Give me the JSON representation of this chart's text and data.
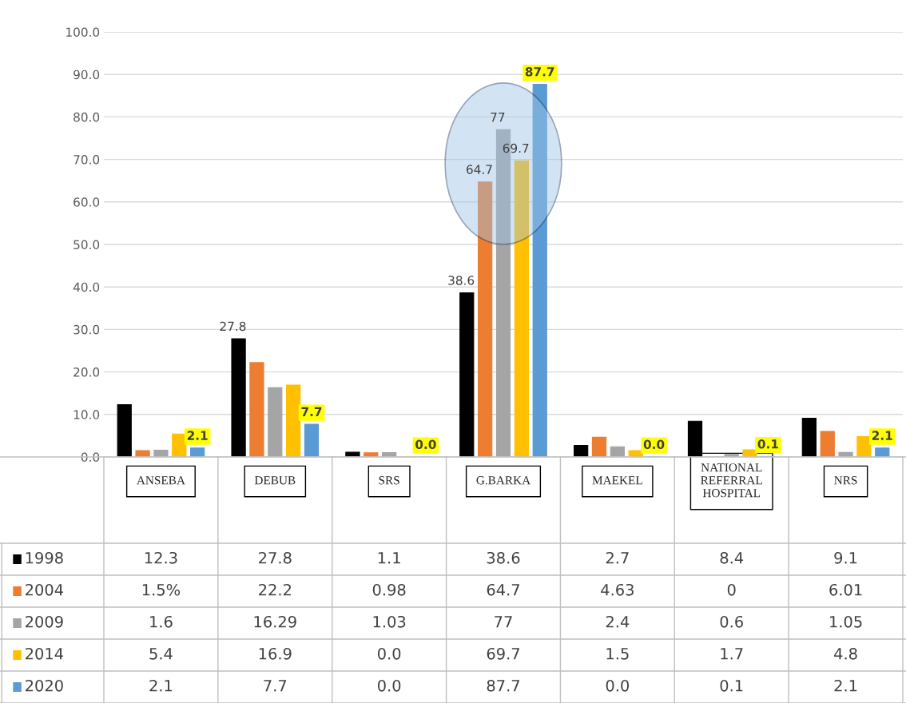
{
  "chart_data": {
    "type": "bar",
    "categories": [
      "ANSEBA",
      "DEBUB",
      "SRS",
      "G.BARKA",
      "MAEKEL",
      "NATIONAL\nREFERRAL\nHOSPITAL",
      "NRS"
    ],
    "series": [
      {
        "name": "1998",
        "color": "#000000",
        "values": [
          12.3,
          27.8,
          1.1,
          38.6,
          2.7,
          8.4,
          9.1
        ],
        "value_labels": [
          "12.3",
          "27.8",
          "1.1",
          "38.6",
          "2.7",
          "8.4",
          "9.1"
        ]
      },
      {
        "name": "2004",
        "color": "#ed7d31",
        "values": [
          1.5,
          22.2,
          0.98,
          64.7,
          4.63,
          0,
          6.01
        ],
        "value_labels": [
          "1.5%",
          "22.2",
          "0.98",
          "64.7",
          "4.63",
          "0",
          "6.01"
        ]
      },
      {
        "name": "2009",
        "color": "#a5a5a5",
        "values": [
          1.6,
          16.29,
          1.03,
          77,
          2.4,
          0.6,
          1.05
        ],
        "value_labels": [
          "1.6",
          "16.29",
          "1.03",
          "77",
          "2.4",
          "0.6",
          "1.05"
        ]
      },
      {
        "name": "2014",
        "color": "#ffc000",
        "values": [
          5.4,
          16.9,
          0.0,
          69.7,
          1.5,
          1.7,
          4.8
        ],
        "value_labels": [
          "5.4",
          "16.9",
          "0.0",
          "69.7",
          "1.5",
          "1.7",
          "4.8"
        ]
      },
      {
        "name": "2020",
        "color": "#5b9bd5",
        "values": [
          2.1,
          7.7,
          0.0,
          87.7,
          0.0,
          0.1,
          2.1
        ],
        "value_labels": [
          "2.1",
          "7.7",
          "0.0",
          "87.7",
          "0.0",
          "0.1",
          "2.1"
        ]
      }
    ],
    "annotations": [
      "27.8",
      "38.6",
      "64.7",
      "77",
      "69.7",
      "87.7",
      "2.1",
      "7.7",
      "0.0",
      "0.0",
      "0.1",
      "2.1"
    ],
    "ylim": [
      0,
      100
    ],
    "yticks": [
      {
        "value": 0,
        "label": "0.0"
      },
      {
        "value": 10,
        "label": "10.0"
      },
      {
        "value": 20,
        "label": "20.0"
      },
      {
        "value": 30,
        "label": "30.0"
      },
      {
        "value": 40,
        "label": "40.0"
      },
      {
        "value": 50,
        "label": "50.0"
      },
      {
        "value": 60,
        "label": "60.0"
      },
      {
        "value": 70,
        "label": "70.0"
      },
      {
        "value": 80,
        "label": "80.0"
      },
      {
        "value": 90,
        "label": "90.0"
      },
      {
        "value": 100,
        "label": "100.0"
      }
    ],
    "grid": "y",
    "legend": "bottom"
  }
}
